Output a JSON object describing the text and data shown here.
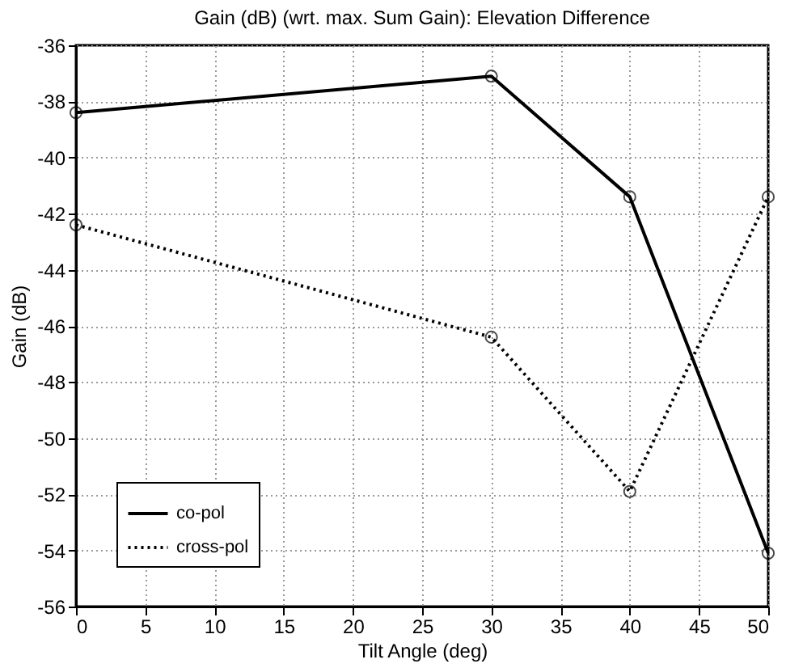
{
  "chart_data": {
    "type": "line",
    "title": "Gain (dB) (wrt. max. Sum Gain): Elevation Difference",
    "xlabel": "Tilt Angle (deg)",
    "ylabel": "Gain (dB)",
    "x": [
      0,
      30,
      40,
      50
    ],
    "series": [
      {
        "name": "co-pol",
        "color": "#000000",
        "line_style": "solid",
        "values": [
          -38.4,
          -37.1,
          -41.4,
          -54.1
        ]
      },
      {
        "name": "cross-pol",
        "color": "#000000",
        "line_style": "dotted",
        "values": [
          -42.4,
          -46.4,
          -51.9,
          -41.4
        ]
      }
    ],
    "marker": "circle",
    "xlim": [
      0,
      50
    ],
    "xticks": [
      0,
      5,
      10,
      15,
      20,
      25,
      30,
      35,
      40,
      45,
      50
    ],
    "ylim": [
      -56,
      -36
    ],
    "yticks": [
      -56,
      -54,
      -52,
      -50,
      -48,
      -46,
      -44,
      -42,
      -40,
      -38,
      -36
    ],
    "grid": true,
    "legend": "bottom left"
  }
}
